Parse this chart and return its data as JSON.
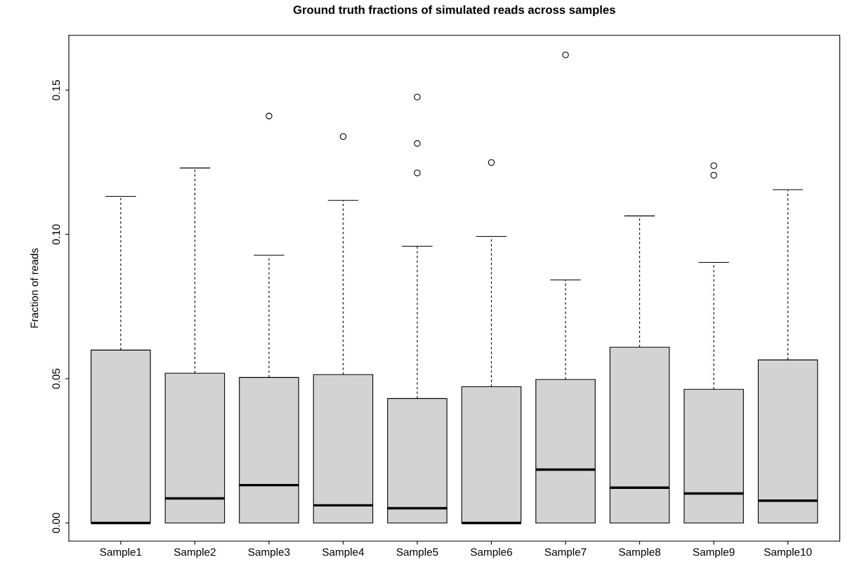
{
  "chart_data": {
    "type": "box",
    "title": "Ground truth fractions of simulated reads across samples",
    "ylabel": "Fraction of reads",
    "categories": [
      "Sample1",
      "Sample2",
      "Sample3",
      "Sample4",
      "Sample5",
      "Sample6",
      "Sample7",
      "Sample8",
      "Sample9",
      "Sample10"
    ],
    "color": "#d3d3d3",
    "boxes": [
      {
        "low": 0,
        "q1": 0,
        "median": 0,
        "q3": 0.0599,
        "high": 0.1132
      },
      {
        "low": 0,
        "q1": 0,
        "median": 0.0085,
        "q3": 0.0519,
        "high": 0.123
      },
      {
        "low": 0,
        "q1": 0,
        "median": 0.0131,
        "q3": 0.0504,
        "high": 0.0928,
        "outliers": [
          0.141
        ]
      },
      {
        "low": 0,
        "q1": 0,
        "median": 0.0061,
        "q3": 0.0514,
        "high": 0.1118,
        "outliers": [
          0.1339
        ]
      },
      {
        "low": 0,
        "q1": 0,
        "median": 0.0051,
        "q3": 0.0431,
        "high": 0.0959,
        "outliers": [
          0.1476,
          0.1315,
          0.1213
        ]
      },
      {
        "low": 0,
        "q1": 0,
        "median": 0,
        "q3": 0.0472,
        "high": 0.0993,
        "outliers": [
          0.1249
        ]
      },
      {
        "low": 0,
        "q1": 0,
        "median": 0.0185,
        "q3": 0.0497,
        "high": 0.0842,
        "outliers": [
          0.1622
        ]
      },
      {
        "low": 0,
        "q1": 0,
        "median": 0.0122,
        "q3": 0.0609,
        "high": 0.1064
      },
      {
        "low": 0,
        "q1": 0,
        "median": 0.0102,
        "q3": 0.0463,
        "high": 0.0903,
        "outliers": [
          0.1238,
          0.1205
        ]
      },
      {
        "low": 0,
        "q1": 0,
        "median": 0.0077,
        "q3": 0.0565,
        "high": 0.1155
      }
    ],
    "ylim": [
      -0.0063,
      0.169
    ],
    "yticks": [
      {
        "value": 0,
        "label": "0.00"
      },
      {
        "value": 0.05,
        "label": "0.05"
      },
      {
        "value": 0.1,
        "label": "0.10"
      },
      {
        "value": 0.15,
        "label": "0.15"
      }
    ],
    "grid": false
  }
}
